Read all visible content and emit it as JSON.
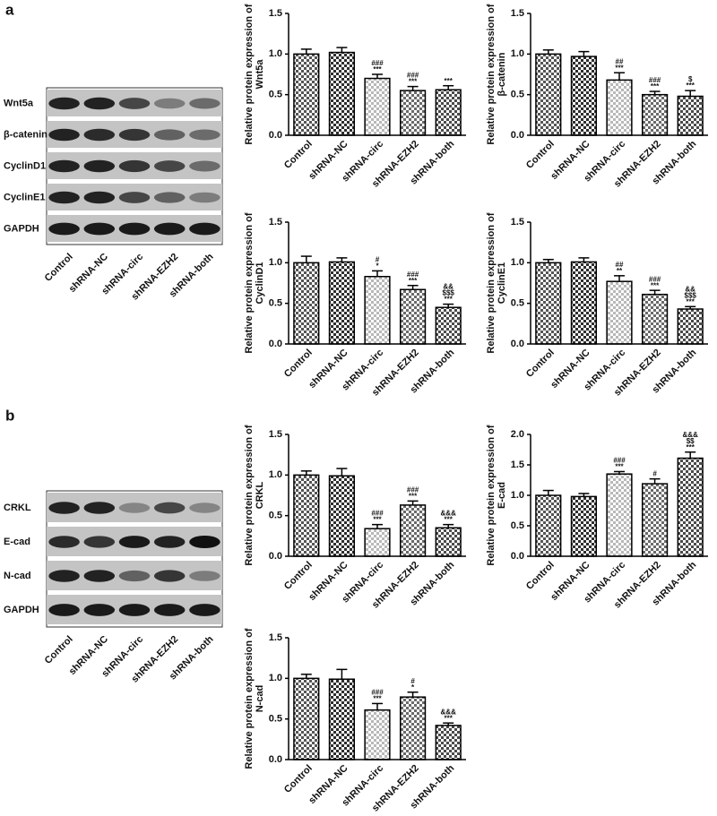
{
  "panels": [
    {
      "label": "a",
      "blot": {
        "rows": [
          "Wnt5a",
          "β-catenin",
          "CyclinD1",
          "CyclinE1",
          "GAPDH"
        ],
        "lanes": [
          "Control",
          "shRNA-NC",
          "shRNA-circ",
          "shRNA-EZH2",
          "shRNA-both"
        ]
      }
    },
    {
      "label": "b",
      "blot": {
        "rows": [
          "CRKL",
          "E-cad",
          "N-cad",
          "GAPDH"
        ],
        "lanes": [
          "Control",
          "shRNA-NC",
          "shRNA-circ",
          "shRNA-EZH2",
          "shRNA-both"
        ]
      }
    }
  ],
  "chart_data": [
    {
      "type": "bar",
      "ylabel": [
        "Relative protein expression of",
        "Wnt5a"
      ],
      "categories": [
        "Control",
        "shRNA-NC",
        "shRNA-circ",
        "shRNA-EZH2",
        "shRNA-both"
      ],
      "values": [
        1.0,
        1.02,
        0.7,
        0.55,
        0.56
      ],
      "errors": [
        0.06,
        0.06,
        0.05,
        0.05,
        0.05
      ],
      "annotations": [
        null,
        null,
        [
          "###",
          "***"
        ],
        [
          "###",
          "***"
        ],
        [
          "***"
        ]
      ],
      "bar_colors": [
        "#555555",
        "#2e2e2e",
        "#b8b8b8",
        "#6a6a6a",
        "#4a4a4a"
      ],
      "ylim": [
        0,
        1.5
      ],
      "yticks": [
        {
          "value": 0,
          "label": "0.0"
        },
        0.5,
        {
          "value": 1,
          "label": "1.0"
        },
        1.5
      ]
    },
    {
      "type": "bar",
      "ylabel": [
        "Relative protein expression of",
        "β-catenin"
      ],
      "categories": [
        "Control",
        "shRNA-NC",
        "shRNA-circ",
        "shRNA-EZH2",
        "shRNA-both"
      ],
      "values": [
        1.0,
        0.97,
        0.68,
        0.5,
        0.48
      ],
      "errors": [
        0.05,
        0.06,
        0.09,
        0.04,
        0.07
      ],
      "annotations": [
        null,
        null,
        [
          "##",
          "***"
        ],
        [
          "###",
          "***"
        ],
        [
          "$",
          "***"
        ]
      ],
      "bar_colors": [
        "#555555",
        "#2e2e2e",
        "#b8b8b8",
        "#6a6a6a",
        "#4a4a4a"
      ],
      "ylim": [
        0,
        1.5
      ],
      "yticks": [
        {
          "value": 0,
          "label": "0.0"
        },
        0.5,
        {
          "value": 1,
          "label": "1.0"
        },
        1.5
      ]
    },
    {
      "type": "bar",
      "ylabel": [
        "Relative protein expression of",
        "CyclinD1"
      ],
      "categories": [
        "Control",
        "shRNA-NC",
        "shRNA-circ",
        "shRNA-EZH2",
        "shRNA-both"
      ],
      "values": [
        1.0,
        1.01,
        0.83,
        0.67,
        0.45
      ],
      "errors": [
        0.08,
        0.05,
        0.07,
        0.05,
        0.04
      ],
      "annotations": [
        null,
        null,
        [
          "#",
          "*"
        ],
        [
          "###",
          "***"
        ],
        [
          "&&",
          "$$$",
          "***"
        ]
      ],
      "bar_colors": [
        "#555555",
        "#2e2e2e",
        "#b8b8b8",
        "#6a6a6a",
        "#4a4a4a"
      ],
      "ylim": [
        0,
        1.5
      ],
      "yticks": [
        {
          "value": 0,
          "label": "0.0"
        },
        0.5,
        {
          "value": 1,
          "label": "1.0"
        },
        1.5
      ]
    },
    {
      "type": "bar",
      "ylabel": [
        "Relative protein expression of",
        "CyclinE1"
      ],
      "categories": [
        "Control",
        "shRNA-NC",
        "shRNA-circ",
        "shRNA-EZH2",
        "shRNA-both"
      ],
      "values": [
        1.0,
        1.01,
        0.77,
        0.61,
        0.43
      ],
      "errors": [
        0.04,
        0.05,
        0.07,
        0.05,
        0.03
      ],
      "annotations": [
        null,
        null,
        [
          "##",
          "**"
        ],
        [
          "###",
          "***"
        ],
        [
          "&&",
          "$$$",
          "***"
        ]
      ],
      "bar_colors": [
        "#555555",
        "#2e2e2e",
        "#b8b8b8",
        "#6a6a6a",
        "#4a4a4a"
      ],
      "ylim": [
        0,
        1.5
      ],
      "yticks": [
        {
          "value": 0,
          "label": "0.0"
        },
        0.5,
        {
          "value": 1,
          "label": "1.0"
        },
        1.5
      ]
    },
    {
      "type": "bar",
      "ylabel": [
        "Relative protein expression of",
        "CRKL"
      ],
      "categories": [
        "Control",
        "shRNA-NC",
        "shRNA-circ",
        "shRNA-EZH2",
        "shRNA-both"
      ],
      "values": [
        1.0,
        0.99,
        0.34,
        0.63,
        0.35
      ],
      "errors": [
        0.05,
        0.09,
        0.05,
        0.05,
        0.04
      ],
      "annotations": [
        null,
        null,
        [
          "###",
          "***"
        ],
        [
          "###",
          "***"
        ],
        [
          "&&&",
          "***"
        ]
      ],
      "bar_colors": [
        "#555555",
        "#2e2e2e",
        "#b8b8b8",
        "#6a6a6a",
        "#4a4a4a"
      ],
      "ylim": [
        0,
        1.5
      ],
      "yticks": [
        {
          "value": 0,
          "label": "0.0"
        },
        0.5,
        {
          "value": 1,
          "label": "1.0"
        },
        1.5
      ]
    },
    {
      "type": "bar",
      "ylabel": [
        "Relative protein expression of",
        "E-cad"
      ],
      "categories": [
        "Control",
        "shRNA-NC",
        "shRNA-circ",
        "shRNA-EZH2",
        "shRNA-both"
      ],
      "values": [
        1.0,
        0.98,
        1.35,
        1.19,
        1.61
      ],
      "errors": [
        0.08,
        0.05,
        0.04,
        0.08,
        0.1
      ],
      "annotations": [
        null,
        null,
        [
          "###",
          "***"
        ],
        [
          "#"
        ],
        [
          "&&&",
          "$$",
          "***"
        ]
      ],
      "bar_colors": [
        "#555555",
        "#2e2e2e",
        "#b8b8b8",
        "#6a6a6a",
        "#4a4a4a"
      ],
      "ylim": [
        0,
        2
      ],
      "yticks": [
        {
          "value": 0,
          "label": "0.0"
        },
        0.5,
        {
          "value": 1,
          "label": "1.0"
        },
        1.5,
        {
          "value": 2,
          "label": "2.0"
        }
      ]
    },
    {
      "type": "bar",
      "ylabel": [
        "Relative protein expression of",
        "N-cad"
      ],
      "categories": [
        "Control",
        "shRNA-NC",
        "shRNA-circ",
        "shRNA-EZH2",
        "shRNA-both"
      ],
      "values": [
        1.0,
        0.99,
        0.61,
        0.77,
        0.42
      ],
      "errors": [
        0.05,
        0.12,
        0.08,
        0.06,
        0.03
      ],
      "annotations": [
        null,
        null,
        [
          "###",
          "***"
        ],
        [
          "#",
          "*"
        ],
        [
          "&&&",
          "***"
        ]
      ],
      "bar_colors": [
        "#555555",
        "#2e2e2e",
        "#b8b8b8",
        "#6a6a6a",
        "#4a4a4a"
      ],
      "ylim": [
        0,
        1.5
      ],
      "yticks": [
        {
          "value": 0,
          "label": "0.0"
        },
        0.5,
        {
          "value": 1,
          "label": "1.0"
        },
        1.5
      ]
    }
  ]
}
